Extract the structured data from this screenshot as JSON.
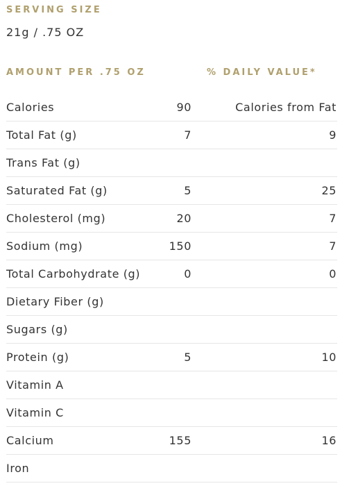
{
  "serving": {
    "title": "SERVING SIZE",
    "value": "21g / .75 OZ"
  },
  "headers": {
    "amount": "AMOUNT PER .75 OZ",
    "daily_value": "% DAILY VALUE*"
  },
  "rows": [
    {
      "name": "Calories",
      "amount": "90",
      "dv": "Calories from Fat"
    },
    {
      "name": "Total Fat (g)",
      "amount": "7",
      "dv": "9"
    },
    {
      "name": "Trans Fat (g)",
      "amount": "",
      "dv": ""
    },
    {
      "name": "Saturated Fat (g)",
      "amount": "5",
      "dv": "25"
    },
    {
      "name": "Cholesterol (mg)",
      "amount": "20",
      "dv": "7"
    },
    {
      "name": "Sodium (mg)",
      "amount": "150",
      "dv": "7"
    },
    {
      "name": "Total Carbohydrate (g)",
      "amount": "0",
      "dv": "0"
    },
    {
      "name": "Dietary Fiber (g)",
      "amount": "",
      "dv": ""
    },
    {
      "name": "Sugars (g)",
      "amount": "",
      "dv": ""
    },
    {
      "name": "Protein (g)",
      "amount": "5",
      "dv": "10"
    },
    {
      "name": "Vitamin A",
      "amount": "",
      "dv": ""
    },
    {
      "name": "Vitamin C",
      "amount": "",
      "dv": ""
    },
    {
      "name": "Calcium",
      "amount": "155",
      "dv": "16"
    },
    {
      "name": "Iron",
      "amount": "",
      "dv": ""
    }
  ],
  "colors": {
    "heading_gold": "#b0a06e",
    "text": "#333333",
    "divider": "#e6e6e6"
  }
}
